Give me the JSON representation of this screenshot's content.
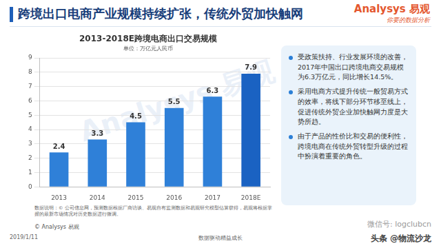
{
  "header": {
    "title": "跨境出口电商产业规模持续扩张，传统外贸加快触网",
    "logo": "Analysys",
    "logo_cn": "易观",
    "logo_slogan": "你要的数据分析"
  },
  "chart_data": {
    "type": "bar",
    "title": "2013-2018E跨境电商出口交易规模",
    "subtitle": "单位：万亿元人民币",
    "categories": [
      "2013",
      "2014",
      "2015",
      "2016",
      "2017",
      "2018E"
    ],
    "values": [
      2.4,
      3.3,
      4.5,
      5.5,
      6.3,
      7.9
    ],
    "colors": [
      "#2f80d8",
      "#2f80d8",
      "#2f80d8",
      "#2f80d8",
      "#2f80d8",
      "#1a62c2"
    ],
    "ylim": [
      0,
      9
    ],
    "yticks": [
      0,
      1,
      2,
      3,
      4,
      5,
      6,
      7,
      8,
      9
    ],
    "grid": true,
    "data_labels": true,
    "watermark": "Analysys 易观",
    "note": "数据说明：© 公司信息网，预测数据根据厂商访谈、易观自有监测数据和易观研究模型估算获得，易观将根据掌握的最新市场情况对历史数据进行微调。",
    "source": "© Analysys 易观"
  },
  "panel": {
    "bullets": [
      "受政策扶持、行业发展环境的改善，2017年中国出口跨境电商交易规模为6.3万亿元，同比增长14.5%。",
      "采用电商方式提升传统一般贸易方式的效率，将线下部分环节移至线上，促进传统外贸企业加快触网力度是大势所趋。",
      "由于产品的性价比和交易的便利性，跨境电商在传统外贸转型升级的过程中扮演着重要的角色。"
    ]
  },
  "footer": {
    "date": "2019/1/11",
    "slogan": "数据驱动精益成长",
    "wechat": "微信号: logclubcn",
    "toutiao": "头条 @物流沙龙"
  }
}
